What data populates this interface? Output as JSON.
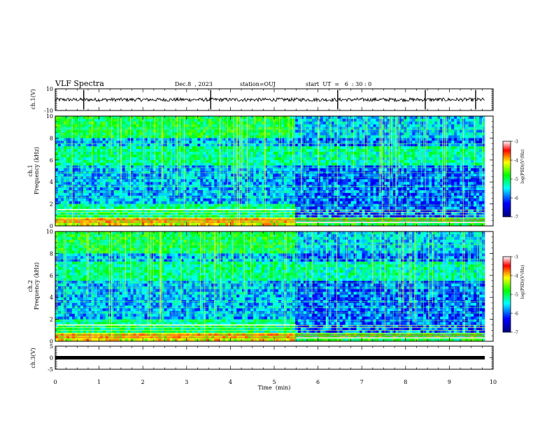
{
  "header": {
    "title": "VLF Spectra",
    "date": "Dec.8  , 2023",
    "station": "station=OUJ",
    "start": "start  UT  =   6  : 30 : 0"
  },
  "chart_data": [
    {
      "type": "line",
      "panel": "ch1-waveform",
      "ylabel": "ch.1(V)",
      "ylim": [
        -10,
        10
      ],
      "yticks": [
        "10",
        "-10"
      ],
      "xlim": [
        0,
        10
      ],
      "baseline": 0,
      "spikes_min": [
        0.65,
        3.55,
        6.45,
        8.45,
        9.6
      ]
    },
    {
      "type": "heatmap",
      "panel": "ch1-spectrogram",
      "ylabel": "ch.1\nFrequency  (kHz)",
      "ylim": [
        0,
        10
      ],
      "yticks": [
        "0",
        "2",
        "4",
        "6",
        "8",
        "10"
      ],
      "xlim": [
        0,
        10
      ],
      "transition_min": 5.5,
      "colorbar": {
        "label": "log(PSD)(V²/Hz)",
        "range": [
          -7,
          -3
        ],
        "ticks": [
          "-3",
          "-4",
          "-5",
          "-6",
          "-7"
        ]
      }
    },
    {
      "type": "heatmap",
      "panel": "ch2-spectrogram",
      "ylabel": "ch.2\nFrequency  (kHz)",
      "ylim": [
        0,
        10
      ],
      "yticks": [
        "0",
        "2",
        "4",
        "6",
        "8",
        "10"
      ],
      "xlim": [
        0,
        10
      ],
      "transition_min": 5.5,
      "colorbar": {
        "label": "log(PSD)(V²/Hz)",
        "range": [
          -7,
          -3
        ],
        "ticks": [
          "-3",
          "-4",
          "-5",
          "-6",
          "-7"
        ]
      }
    },
    {
      "type": "line",
      "panel": "ch3-waveform",
      "ylabel": "ch.3(V)",
      "ylim": [
        -5,
        5
      ],
      "yticks": [
        "5",
        "0",
        "-5"
      ],
      "xlim": [
        0,
        10
      ],
      "baseline": 0
    }
  ],
  "xaxis": {
    "label": "Time  (min)",
    "ticks": [
      "0",
      "1",
      "2",
      "3",
      "4",
      "5",
      "6",
      "7",
      "8",
      "9",
      "10"
    ]
  },
  "colors": {
    "colormap": [
      "#000080",
      "#0000ff",
      "#00ffff",
      "#00ff00",
      "#ffff00",
      "#ff0000",
      "#ffffff"
    ]
  }
}
